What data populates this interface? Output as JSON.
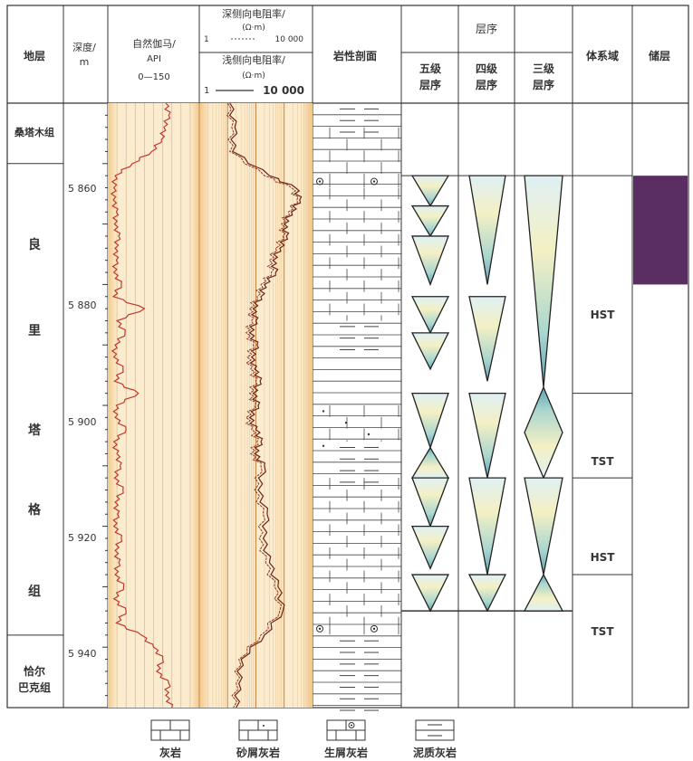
{
  "header": {
    "stratum": "地层",
    "depth_line1": "深度/",
    "depth_line2": "m",
    "gr_title": "自然伽马/",
    "gr_unit": "API",
    "gr_range": "0—150",
    "deep_title": "深侧向电阻率/",
    "deep_unit": "(Ω·m)",
    "deep_range_min": "1",
    "deep_range_max": "10 000",
    "shallow_title": "浅侧向电阻率/",
    "shallow_unit": "(Ω·m)",
    "shallow_range_min": "1",
    "shallow_range_max": "10 000",
    "lithology": "岩性剖面",
    "sequence": "层序",
    "seq5_line1": "五级",
    "seq5_line2": "层序",
    "seq4_line1": "四级",
    "seq4_line2": "层序",
    "seq3_line1": "三级",
    "seq3_line2": "层序",
    "systems_tract": "体系域",
    "reservoir": "储层"
  },
  "formations": {
    "top": "桑塔木组",
    "main_chars": [
      "良",
      "里",
      "塔",
      "格",
      "组"
    ],
    "bottom_line1": "恰尔",
    "bottom_line2": "巴克组"
  },
  "depth_ticks": [
    "5 860",
    "5 880",
    "5 900",
    "5 920",
    "5 940"
  ],
  "systems_tracts": [
    "HST",
    "TST",
    "HST",
    "TST"
  ],
  "legend": [
    "灰岩",
    "砂屑灰岩",
    "生屑灰岩",
    "泥质灰岩"
  ],
  "chart_data": {
    "type": "well-log",
    "depth_range": [
      5850,
      5950
    ],
    "depth_unit": "m",
    "formation_tops": [
      {
        "name": "桑塔木组",
        "top": 5850,
        "base": 5860
      },
      {
        "name": "良里塔格组",
        "top": 5860,
        "base": 5938
      },
      {
        "name": "恰尔巴克组",
        "top": 5938,
        "base": 5950
      }
    ],
    "gamma_api": {
      "range": [
        0,
        150
      ],
      "depth": [
        5850,
        5852,
        5854,
        5856,
        5858,
        5860,
        5862,
        5864,
        5866,
        5868,
        5870,
        5872,
        5874,
        5876,
        5878,
        5880,
        5882,
        5884,
        5886,
        5888,
        5890,
        5892,
        5894,
        5896,
        5898,
        5900,
        5902,
        5904,
        5906,
        5908,
        5910,
        5912,
        5914,
        5916,
        5918,
        5920,
        5922,
        5924,
        5926,
        5928,
        5930,
        5932,
        5934,
        5936,
        5938,
        5940,
        5942,
        5944,
        5946,
        5948,
        5950
      ],
      "values": [
        95,
        100,
        92,
        88,
        72,
        40,
        12,
        10,
        9,
        14,
        11,
        18,
        12,
        14,
        10,
        22,
        9,
        60,
        15,
        28,
        12,
        10,
        25,
        11,
        50,
        14,
        12,
        30,
        10,
        15,
        20,
        11,
        25,
        12,
        16,
        10,
        22,
        12,
        18,
        12,
        26,
        10,
        30,
        14,
        55,
        75,
        90,
        80,
        100,
        95,
        105
      ]
    },
    "deep_resistivity": {
      "range": [
        1,
        10000
      ],
      "depth": [
        5850,
        5854,
        5858,
        5862,
        5864,
        5866,
        5868,
        5870,
        5872,
        5874,
        5876,
        5878,
        5880,
        5882,
        5884,
        5886,
        5888,
        5890,
        5892,
        5894,
        5896,
        5898,
        5900,
        5902,
        5904,
        5906,
        5908,
        5910,
        5914,
        5918,
        5922,
        5926,
        5930,
        5934,
        5938,
        5942,
        5946,
        5950
      ],
      "values": [
        12,
        18,
        15,
        300,
        2500,
        3500,
        1800,
        1000,
        1200,
        700,
        400,
        500,
        200,
        150,
        80,
        100,
        60,
        110,
        70,
        90,
        140,
        80,
        120,
        60,
        100,
        150,
        90,
        200,
        120,
        250,
        180,
        300,
        600,
        900,
        200,
        30,
        25,
        20
      ]
    },
    "shallow_resistivity": {
      "range": [
        1,
        10000
      ],
      "depth": [
        5850,
        5854,
        5858,
        5862,
        5864,
        5866,
        5868,
        5870,
        5872,
        5874,
        5876,
        5878,
        5880,
        5882,
        5884,
        5886,
        5888,
        5890,
        5892,
        5894,
        5896,
        5898,
        5900,
        5902,
        5904,
        5906,
        5908,
        5910,
        5914,
        5918,
        5922,
        5926,
        5930,
        5934,
        5938,
        5942,
        5946,
        5950
      ],
      "values": [
        10,
        14,
        12,
        200,
        1800,
        2800,
        1400,
        800,
        900,
        500,
        300,
        350,
        150,
        110,
        60,
        70,
        45,
        80,
        50,
        65,
        100,
        60,
        90,
        45,
        70,
        110,
        65,
        150,
        90,
        180,
        130,
        220,
        450,
        700,
        150,
        25,
        20,
        16
      ]
    },
    "lithology_intervals": [
      {
        "lithology": "泥质灰岩",
        "top": 5850,
        "base": 5854
      },
      {
        "lithology": "灰岩",
        "top": 5854,
        "base": 5862
      },
      {
        "lithology": "生屑灰岩",
        "top": 5862,
        "base": 5864
      },
      {
        "lithology": "灰岩",
        "top": 5864,
        "base": 5886
      },
      {
        "lithology": "泥质灰岩",
        "top": 5886,
        "base": 5890
      },
      {
        "lithology": "砂屑灰岩",
        "top": 5900,
        "base": 5906
      },
      {
        "lithology": "泥质灰岩",
        "top": 5906,
        "base": 5912
      },
      {
        "lithology": "灰岩",
        "top": 5912,
        "base": 5936
      },
      {
        "lithology": "生屑灰岩",
        "top": 5936,
        "base": 5938
      },
      {
        "lithology": "泥质灰岩",
        "top": 5938,
        "base": 5950
      }
    ],
    "seq5_triangles": [
      {
        "top": 5862,
        "base": 5867,
        "dir": "down"
      },
      {
        "top": 5867,
        "base": 5872,
        "dir": "down"
      },
      {
        "top": 5872,
        "base": 5880,
        "dir": "down"
      },
      {
        "top": 5882,
        "base": 5888,
        "dir": "down"
      },
      {
        "top": 5888,
        "base": 5894,
        "dir": "down"
      },
      {
        "top": 5898,
        "base": 5907,
        "dir": "down"
      },
      {
        "top": 5907,
        "base": 5912,
        "dir": "up"
      },
      {
        "top": 5912,
        "base": 5920,
        "dir": "down"
      },
      {
        "top": 5920,
        "base": 5927,
        "dir": "down"
      },
      {
        "top": 5928,
        "base": 5934,
        "dir": "down"
      }
    ],
    "seq4_triangles": [
      {
        "top": 5862,
        "base": 5880,
        "dir": "down"
      },
      {
        "top": 5882,
        "base": 5896,
        "dir": "down"
      },
      {
        "top": 5898,
        "base": 5912,
        "dir": "down"
      },
      {
        "top": 5912,
        "base": 5928,
        "dir": "down"
      },
      {
        "top": 5928,
        "base": 5934,
        "dir": "down"
      }
    ],
    "seq3_triangles": [
      {
        "top": 5862,
        "base": 5897,
        "dir": "down"
      },
      {
        "top": 5897,
        "base": 5912,
        "dir": "diamond"
      },
      {
        "top": 5912,
        "base": 5928,
        "dir": "down"
      },
      {
        "top": 5928,
        "base": 5934,
        "dir": "up"
      }
    ],
    "systems_tract_intervals": [
      {
        "name": "HST",
        "top": 5862,
        "base": 5898
      },
      {
        "name": "TST",
        "top": 5898,
        "base": 5912
      },
      {
        "name": "HST",
        "top": 5912,
        "base": 5928
      },
      {
        "name": "TST",
        "top": 5928,
        "base": 5934
      }
    ],
    "reservoir_intervals": [
      {
        "top": 5862,
        "base": 5880
      }
    ],
    "colors": {
      "reservoir": "#5a2e63",
      "triangle_light": "#f4f0c4",
      "triangle_mid": "#a9d6cf",
      "triangle_dark": "#5f9fb4",
      "gamma": "#c0392b",
      "resistivity": "#6b2416"
    }
  }
}
